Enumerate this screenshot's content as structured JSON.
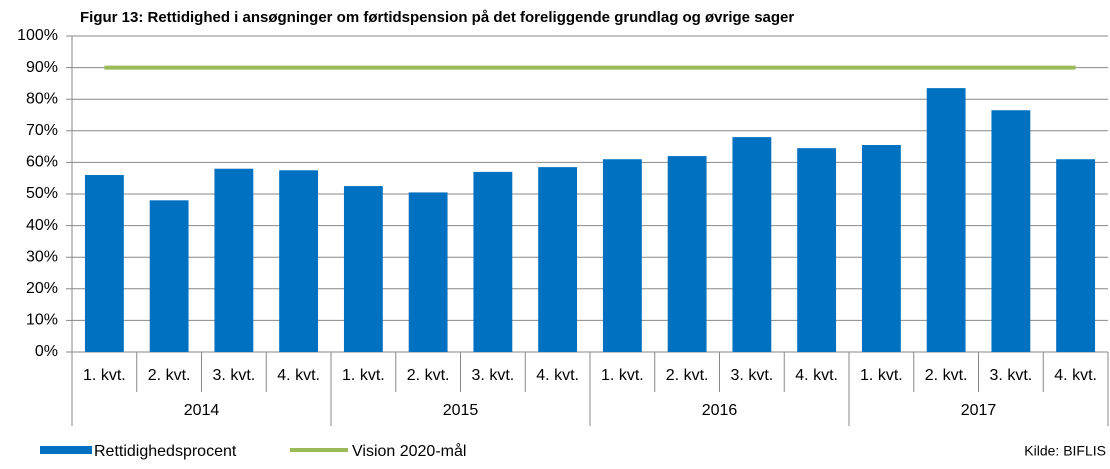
{
  "chart_data": {
    "type": "bar",
    "title": "Figur 13: Rettidighed i ansøgninger om førtidspension på det foreliggende grundlag og øvrige sager",
    "categories": [
      "1. kvt.",
      "2. kvt.",
      "3. kvt.",
      "4. kvt.",
      "1. kvt.",
      "2. kvt.",
      "3. kvt.",
      "4. kvt.",
      "1. kvt.",
      "2. kvt.",
      "3. kvt.",
      "4. kvt.",
      "1. kvt.",
      "2. kvt.",
      "3. kvt.",
      "4. kvt."
    ],
    "category_groups": [
      "2014",
      "2015",
      "2016",
      "2017"
    ],
    "series": [
      {
        "name": "Rettidighedsprocent",
        "type": "bar",
        "color": "#0070c0",
        "values": [
          56,
          48,
          58,
          57.5,
          52.5,
          50.5,
          57,
          58.5,
          61,
          62,
          68,
          64.5,
          65.5,
          83.5,
          76.5,
          61
        ]
      },
      {
        "name": "Vision 2020-mål",
        "type": "line",
        "color": "#9bbb59",
        "values": [
          90,
          90,
          90,
          90,
          90,
          90,
          90,
          90,
          90,
          90,
          90,
          90,
          90,
          90,
          90,
          90
        ]
      }
    ],
    "ylim": [
      0,
      100
    ],
    "yticks": [
      {
        "value": 0,
        "label": "0%"
      },
      {
        "value": 10,
        "label": "10%"
      },
      {
        "value": 20,
        "label": "20%"
      },
      {
        "value": 30,
        "label": "30%"
      },
      {
        "value": 40,
        "label": "40%"
      },
      {
        "value": 50,
        "label": "50%"
      },
      {
        "value": 60,
        "label": "60%"
      },
      {
        "value": 70,
        "label": "70%"
      },
      {
        "value": 80,
        "label": "80%"
      },
      {
        "value": 90,
        "label": "90%"
      },
      {
        "value": 100,
        "label": "100%"
      }
    ],
    "grid": true,
    "legend": "bottom-left",
    "source": "Kilde: BIFLIS"
  }
}
